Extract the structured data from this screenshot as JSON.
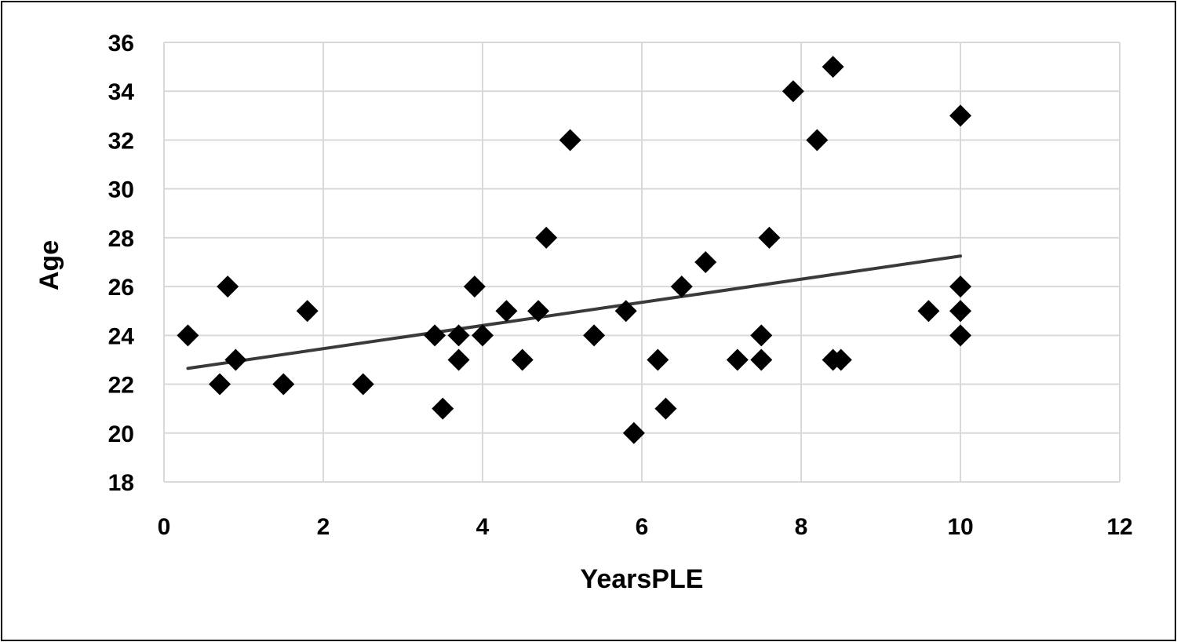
{
  "chart_data": {
    "type": "scatter",
    "title": "",
    "xlabel": "YearsPLE",
    "ylabel": "Age",
    "xlim": [
      0,
      12
    ],
    "ylim": [
      18,
      36
    ],
    "x_ticks": [
      "0",
      "2",
      "4",
      "6",
      "8",
      "10",
      "12"
    ],
    "y_ticks": [
      "18",
      "20",
      "22",
      "24",
      "26",
      "28",
      "30",
      "32",
      "34",
      "36"
    ],
    "grid": true,
    "legend": "none",
    "marker": "diamond",
    "colors": {
      "marker": "#000000",
      "trendline": "#3a3a3a",
      "grid": "#d9d9d9",
      "frame": "#000000"
    },
    "series": [
      {
        "points": [
          {
            "x": 0.3,
            "y": 24
          },
          {
            "x": 0.7,
            "y": 22
          },
          {
            "x": 0.8,
            "y": 26
          },
          {
            "x": 0.9,
            "y": 23
          },
          {
            "x": 1.5,
            "y": 22
          },
          {
            "x": 1.8,
            "y": 25
          },
          {
            "x": 2.5,
            "y": 22
          },
          {
            "x": 3.4,
            "y": 24
          },
          {
            "x": 3.5,
            "y": 21
          },
          {
            "x": 3.7,
            "y": 24
          },
          {
            "x": 3.7,
            "y": 23
          },
          {
            "x": 3.9,
            "y": 26
          },
          {
            "x": 4.0,
            "y": 24
          },
          {
            "x": 4.3,
            "y": 25
          },
          {
            "x": 4.5,
            "y": 23
          },
          {
            "x": 4.7,
            "y": 25
          },
          {
            "x": 4.8,
            "y": 28
          },
          {
            "x": 5.1,
            "y": 32
          },
          {
            "x": 5.4,
            "y": 24
          },
          {
            "x": 5.8,
            "y": 25
          },
          {
            "x": 5.9,
            "y": 20
          },
          {
            "x": 6.2,
            "y": 23
          },
          {
            "x": 6.3,
            "y": 21
          },
          {
            "x": 6.5,
            "y": 26
          },
          {
            "x": 6.8,
            "y": 27
          },
          {
            "x": 7.2,
            "y": 23
          },
          {
            "x": 7.5,
            "y": 24
          },
          {
            "x": 7.5,
            "y": 23
          },
          {
            "x": 7.6,
            "y": 28
          },
          {
            "x": 7.9,
            "y": 34
          },
          {
            "x": 8.2,
            "y": 32
          },
          {
            "x": 8.4,
            "y": 35
          },
          {
            "x": 8.4,
            "y": 23
          },
          {
            "x": 8.5,
            "y": 23
          },
          {
            "x": 9.6,
            "y": 25
          },
          {
            "x": 10,
            "y": 33
          },
          {
            "x": 10,
            "y": 26
          },
          {
            "x": 10,
            "y": 25
          },
          {
            "x": 10,
            "y": 24
          }
        ]
      }
    ],
    "trendline": {
      "type": "linear",
      "from": {
        "x": 0.3,
        "y": 22.65
      },
      "to": {
        "x": 10,
        "y": 27.25
      }
    }
  }
}
